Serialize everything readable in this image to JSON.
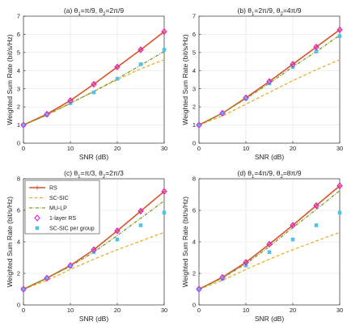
{
  "figure": {
    "xlabel": "SNR (dB)",
    "ylabel": "Weighted Sum Rate (bit/s/Hz)"
  },
  "legend": {
    "items": [
      {
        "key": "RS",
        "label": "RS"
      },
      {
        "key": "SC-SIC",
        "label": "SC-SIC"
      },
      {
        "key": "MU-LP",
        "label": "MU-LP"
      },
      {
        "key": "1-layer RS",
        "label": "1-layer RS"
      },
      {
        "key": "SC-SIC per group",
        "label": "SC-SIC per group"
      }
    ]
  },
  "colors": {
    "RS": "#d9532b",
    "SC-SIC": "#e8b030",
    "MU-LP": "#7a9e2c",
    "1-layer RS": "#e020e0",
    "SC-SIC per group": "#4fc3e8"
  },
  "chart_data": [
    {
      "type": "line",
      "title_main": "(a) θ",
      "title_parts": [
        {
          "t": "(a) θ"
        },
        {
          "t": "1",
          "sub": true
        },
        {
          "t": "=π/9, θ"
        },
        {
          "t": "2",
          "sub": true
        },
        {
          "t": "=2π/9"
        }
      ],
      "x": [
        0,
        5,
        10,
        15,
        20,
        25,
        30
      ],
      "xticks": [
        0,
        10,
        20,
        30
      ],
      "yticks": [
        0,
        1,
        2,
        3,
        4,
        5,
        6,
        7
      ],
      "xlim": [
        0,
        30
      ],
      "ylim": [
        0,
        7
      ],
      "grid": true,
      "series": [
        {
          "name": "RS",
          "values": [
            1.0,
            1.6,
            2.35,
            3.25,
            4.2,
            5.15,
            6.15
          ]
        },
        {
          "name": "SC-SIC",
          "values": [
            1.0,
            1.55,
            2.2,
            2.85,
            3.5,
            4.1,
            4.6
          ]
        },
        {
          "name": "MU-LP",
          "values": [
            1.0,
            1.55,
            2.2,
            2.85,
            3.55,
            4.3,
            5.05
          ]
        },
        {
          "name": "1-layer RS",
          "values": [
            1.0,
            1.6,
            2.35,
            3.25,
            4.2,
            5.15,
            6.15
          ]
        },
        {
          "name": "SC-SIC per group",
          "values": [
            1.0,
            1.55,
            2.2,
            2.8,
            3.55,
            4.35,
            5.15
          ]
        }
      ]
    },
    {
      "type": "line",
      "title_parts": [
        {
          "t": "(b) θ"
        },
        {
          "t": "1",
          "sub": true
        },
        {
          "t": "=2π/9, θ"
        },
        {
          "t": "2",
          "sub": true
        },
        {
          "t": "=4π/9"
        }
      ],
      "x": [
        0,
        5,
        10,
        15,
        20,
        25,
        30
      ],
      "xticks": [
        0,
        10,
        20,
        30
      ],
      "yticks": [
        0,
        1,
        2,
        3,
        4,
        5,
        6,
        7
      ],
      "xlim": [
        0,
        30
      ],
      "ylim": [
        0,
        7
      ],
      "grid": true,
      "series": [
        {
          "name": "RS",
          "values": [
            1.0,
            1.65,
            2.5,
            3.4,
            4.35,
            5.3,
            6.25
          ]
        },
        {
          "name": "SC-SIC",
          "values": [
            1.0,
            1.5,
            2.15,
            2.8,
            3.45,
            4.05,
            4.6
          ]
        },
        {
          "name": "MU-LP",
          "values": [
            1.0,
            1.65,
            2.45,
            3.3,
            4.2,
            5.05,
            5.95
          ]
        },
        {
          "name": "1-layer RS",
          "values": [
            1.0,
            1.65,
            2.5,
            3.4,
            4.35,
            5.3,
            6.25
          ]
        },
        {
          "name": "SC-SIC per group",
          "values": [
            1.0,
            1.65,
            2.45,
            3.3,
            4.2,
            5.05,
            5.9
          ]
        }
      ]
    },
    {
      "type": "line",
      "title_parts": [
        {
          "t": "(c) θ"
        },
        {
          "t": "1",
          "sub": true
        },
        {
          "t": "=π/3, θ"
        },
        {
          "t": "2",
          "sub": true
        },
        {
          "t": "=2π/3"
        }
      ],
      "x": [
        0,
        5,
        10,
        15,
        20,
        25,
        30
      ],
      "xticks": [
        0,
        10,
        20,
        30
      ],
      "yticks": [
        0,
        2,
        4,
        6,
        8
      ],
      "xlim": [
        0,
        30
      ],
      "ylim": [
        0,
        8
      ],
      "grid": true,
      "series": [
        {
          "name": "RS",
          "values": [
            1.0,
            1.7,
            2.5,
            3.5,
            4.7,
            5.95,
            7.2
          ]
        },
        {
          "name": "SC-SIC",
          "values": [
            1.0,
            1.55,
            2.25,
            2.9,
            3.5,
            4.05,
            4.6
          ]
        },
        {
          "name": "MU-LP",
          "values": [
            1.0,
            1.7,
            2.45,
            3.35,
            4.4,
            5.5,
            6.6
          ]
        },
        {
          "name": "1-layer RS",
          "values": [
            1.0,
            1.7,
            2.5,
            3.5,
            4.7,
            5.95,
            7.2
          ]
        },
        {
          "name": "SC-SIC per group",
          "values": [
            1.0,
            1.7,
            2.45,
            3.35,
            4.15,
            5.05,
            5.85
          ]
        }
      ]
    },
    {
      "type": "line",
      "title_parts": [
        {
          "t": "(d) θ"
        },
        {
          "t": "1",
          "sub": true
        },
        {
          "t": "=4π/9, θ"
        },
        {
          "t": "2",
          "sub": true
        },
        {
          "t": "=8π/9"
        }
      ],
      "x": [
        0,
        5,
        10,
        15,
        20,
        25,
        30
      ],
      "xticks": [
        0,
        10,
        20,
        30
      ],
      "yticks": [
        0,
        2,
        4,
        6,
        8
      ],
      "xlim": [
        0,
        30
      ],
      "ylim": [
        0,
        8
      ],
      "grid": true,
      "series": [
        {
          "name": "RS",
          "values": [
            1.0,
            1.75,
            2.7,
            3.85,
            5.05,
            6.3,
            7.55
          ]
        },
        {
          "name": "SC-SIC",
          "values": [
            1.0,
            1.55,
            2.25,
            2.9,
            3.5,
            4.05,
            4.6
          ]
        },
        {
          "name": "MU-LP",
          "values": [
            1.0,
            1.7,
            2.6,
            3.7,
            4.9,
            6.05,
            7.25
          ]
        },
        {
          "name": "1-layer RS",
          "values": [
            1.0,
            1.75,
            2.7,
            3.85,
            5.05,
            6.3,
            7.55
          ]
        },
        {
          "name": "SC-SIC per group",
          "values": [
            1.0,
            1.65,
            2.5,
            3.35,
            4.15,
            5.05,
            5.85
          ]
        }
      ]
    }
  ]
}
